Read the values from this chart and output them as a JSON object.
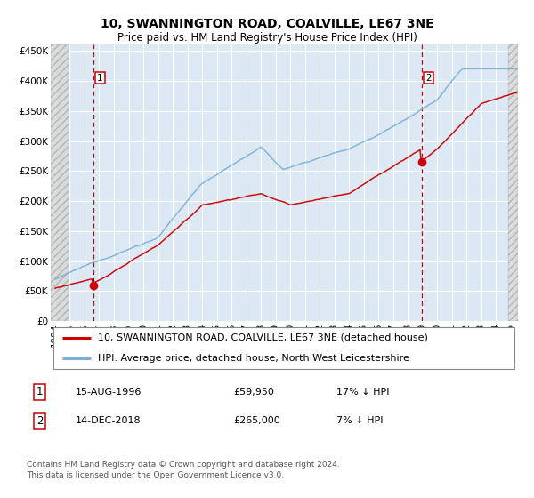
{
  "title": "10, SWANNINGTON ROAD, COALVILLE, LE67 3NE",
  "subtitle": "Price paid vs. HM Land Registry's House Price Index (HPI)",
  "ylabel_ticks": [
    "£0",
    "£50K",
    "£100K",
    "£150K",
    "£200K",
    "£250K",
    "£300K",
    "£350K",
    "£400K",
    "£450K"
  ],
  "ytick_vals": [
    0,
    50000,
    100000,
    150000,
    200000,
    250000,
    300000,
    350000,
    400000,
    450000
  ],
  "ylim": [
    0,
    460000
  ],
  "xlim_start": 1993.7,
  "xlim_end": 2025.5,
  "plot_bg_color": "#dce9f5",
  "grid_color": "#ffffff",
  "point1_x": 1996.617,
  "point1_y": 59950,
  "point1_label": "1",
  "point2_x": 2018.955,
  "point2_y": 265000,
  "point2_label": "2",
  "red_line_color": "#cc0000",
  "blue_line_color": "#7ab0d4",
  "marker_color": "#cc0000",
  "dashed_line_color": "#cc0000",
  "legend_line1": "10, SWANNINGTON ROAD, COALVILLE, LE67 3NE (detached house)",
  "legend_line2": "HPI: Average price, detached house, North West Leicestershire",
  "note1_label": "1",
  "note1_date": "15-AUG-1996",
  "note1_price": "£59,950",
  "note1_hpi": "17% ↓ HPI",
  "note2_label": "2",
  "note2_date": "14-DEC-2018",
  "note2_price": "£265,000",
  "note2_hpi": "7% ↓ HPI",
  "footer": "Contains HM Land Registry data © Crown copyright and database right 2024.\nThis data is licensed under the Open Government Licence v3.0.",
  "title_fontsize": 10,
  "subtitle_fontsize": 8.5,
  "tick_fontsize": 7.5,
  "legend_fontsize": 8,
  "note_fontsize": 8,
  "footer_fontsize": 6.5
}
